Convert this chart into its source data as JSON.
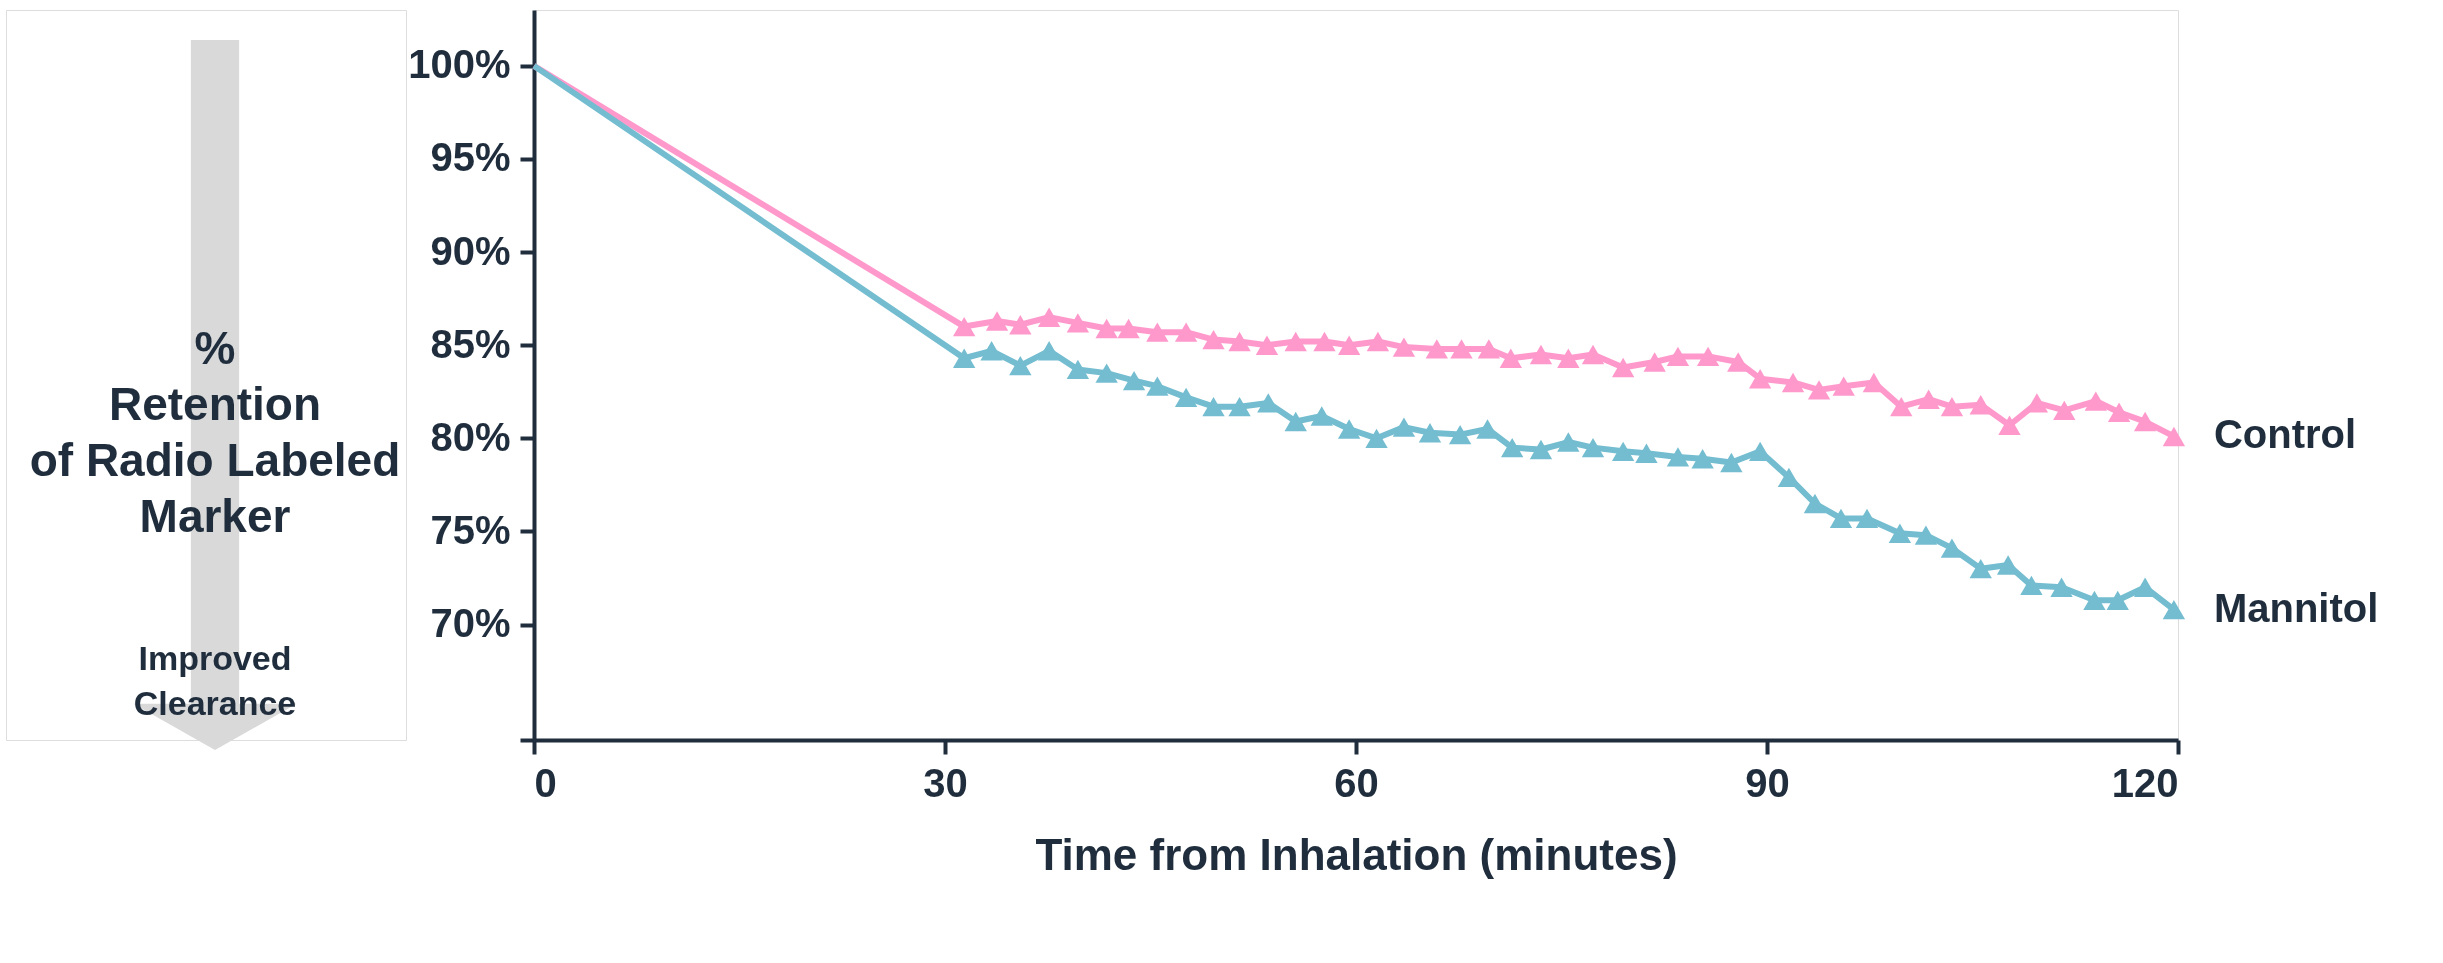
{
  "chart_data": {
    "type": "line",
    "xlabel": "Time from Inhalation (minutes)",
    "ylabel": "%\nRetention\nof Radio Labeled\nMarker",
    "annotations": [
      "Improved\nClearance"
    ],
    "xlim": [
      0,
      120
    ],
    "xticks": [
      0,
      30,
      60,
      90,
      120
    ],
    "ylim": [
      63.8,
      103
    ],
    "yticks": [
      {
        "value": 63.8,
        "label": null
      },
      {
        "value": 70,
        "label": "70%"
      },
      {
        "value": 75,
        "label": "75%"
      },
      {
        "value": 80,
        "label": "80%"
      },
      {
        "value": 85,
        "label": "85%"
      },
      {
        "value": 90,
        "label": "90%"
      },
      {
        "value": 95,
        "label": "95%"
      },
      {
        "value": 100,
        "label": "100%"
      }
    ],
    "grid": false,
    "legend": false,
    "marker": "triangle",
    "line_style": "solid",
    "series": [
      {
        "name": "Control",
        "color": "#ff99cc",
        "x": [
          0,
          31.4,
          33.8,
          35.5,
          37.6,
          39.7,
          41.8,
          43.4,
          45.5,
          47.6,
          49.6,
          51.5,
          53.5,
          55.6,
          57.7,
          59.5,
          61.6,
          63.5,
          65.9,
          67.7,
          69.7,
          71.3,
          73.5,
          75.5,
          77.3,
          79.5,
          81.8,
          83.5,
          85.7,
          87.9,
          89.5,
          91.9,
          93.8,
          95.6,
          97.8,
          99.8,
          101.8,
          103.5,
          105.6,
          107.7,
          109.7,
          111.7,
          114.0,
          115.7,
          117.6,
          119.7
        ],
        "values": [
          100,
          86.0,
          86.3,
          86.1,
          86.5,
          86.2,
          85.9,
          85.9,
          85.7,
          85.7,
          85.3,
          85.2,
          85.0,
          85.2,
          85.2,
          85.0,
          85.2,
          84.9,
          84.8,
          84.8,
          84.8,
          84.3,
          84.5,
          84.3,
          84.5,
          83.8,
          84.1,
          84.4,
          84.4,
          84.1,
          83.2,
          83.0,
          82.6,
          82.8,
          83.0,
          81.7,
          82.1,
          81.7,
          81.8,
          80.7,
          81.9,
          81.5,
          82.0,
          81.4,
          80.9,
          80.1
        ]
      },
      {
        "name": "Mannitol",
        "color": "#74bdd0",
        "x": [
          0,
          31.4,
          33.4,
          35.5,
          37.6,
          39.7,
          41.8,
          43.8,
          45.5,
          47.6,
          49.6,
          51.5,
          53.6,
          55.6,
          57.5,
          59.5,
          61.5,
          63.5,
          65.4,
          67.6,
          69.6,
          71.4,
          73.5,
          75.5,
          77.3,
          79.5,
          81.2,
          83.5,
          85.3,
          87.4,
          89.5,
          91.6,
          93.5,
          95.4,
          97.3,
          99.7,
          101.6,
          103.5,
          105.6,
          107.6,
          109.3,
          111.5,
          113.9,
          115.6,
          117.6,
          119.7
        ],
        "values": [
          100,
          84.3,
          84.7,
          83.9,
          84.7,
          83.7,
          83.5,
          83.1,
          82.8,
          82.2,
          81.7,
          81.7,
          81.9,
          80.9,
          81.2,
          80.5,
          80.0,
          80.6,
          80.3,
          80.2,
          80.5,
          79.5,
          79.4,
          79.8,
          79.5,
          79.3,
          79.2,
          79.0,
          78.9,
          78.7,
          79.3,
          77.9,
          76.5,
          75.7,
          75.7,
          74.9,
          74.8,
          74.1,
          73.0,
          73.2,
          72.1,
          72.0,
          71.3,
          71.3,
          72.0,
          70.8
        ]
      }
    ]
  }
}
